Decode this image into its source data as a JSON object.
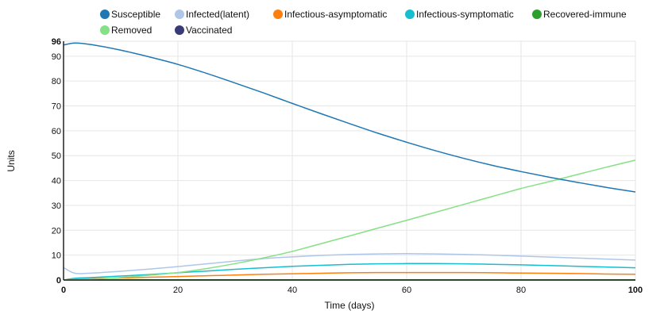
{
  "chart_data": {
    "type": "line",
    "title": "",
    "xlabel": "Time (days)",
    "ylabel": "Units",
    "xlim": [
      0,
      100
    ],
    "ylim": [
      0,
      96
    ],
    "x_ticks": [
      {
        "value": 0,
        "label": "0",
        "bold": true
      },
      {
        "value": 20,
        "label": "20",
        "bold": false
      },
      {
        "value": 40,
        "label": "40",
        "bold": false
      },
      {
        "value": 60,
        "label": "60",
        "bold": false
      },
      {
        "value": 80,
        "label": "80",
        "bold": false
      },
      {
        "value": 100,
        "label": "100",
        "bold": true
      }
    ],
    "y_ticks": [
      {
        "value": 0,
        "label": "0",
        "bold": true
      },
      {
        "value": 10,
        "label": "10",
        "bold": false
      },
      {
        "value": 20,
        "label": "20",
        "bold": false
      },
      {
        "value": 30,
        "label": "30",
        "bold": false
      },
      {
        "value": 40,
        "label": "40",
        "bold": false
      },
      {
        "value": 50,
        "label": "50",
        "bold": false
      },
      {
        "value": 60,
        "label": "60",
        "bold": false
      },
      {
        "value": 70,
        "label": "70",
        "bold": false
      },
      {
        "value": 80,
        "label": "80",
        "bold": false
      },
      {
        "value": 90,
        "label": "90",
        "bold": false
      },
      {
        "value": 96,
        "label": "96",
        "bold": true
      }
    ],
    "grid": true,
    "legend_position": "top",
    "x": [
      0,
      2,
      5,
      10,
      15,
      20,
      25,
      30,
      35,
      40,
      45,
      50,
      55,
      60,
      65,
      70,
      75,
      80,
      85,
      90,
      95,
      100
    ],
    "series": [
      {
        "name": "Susceptible",
        "color": "#1f77b4",
        "values": [
          94.5,
          95.3,
          94.6,
          92.4,
          89.7,
          86.7,
          83.1,
          79.2,
          75.2,
          71.0,
          66.9,
          62.9,
          59.0,
          55.4,
          52.0,
          48.9,
          46.1,
          43.6,
          41.3,
          39.2,
          37.2,
          35.4
        ]
      },
      {
        "name": "Infected(latent)",
        "color": "#aec7e8",
        "values": [
          5.0,
          2.7,
          2.8,
          3.5,
          4.4,
          5.4,
          6.5,
          7.6,
          8.6,
          9.3,
          9.9,
          10.3,
          10.5,
          10.6,
          10.5,
          10.3,
          10.0,
          9.6,
          9.2,
          8.8,
          8.4,
          8.0
        ]
      },
      {
        "name": "Infectious-asymptomatic",
        "color": "#ff7f0e",
        "values": [
          0.0,
          0.4,
          0.6,
          0.8,
          1.1,
          1.4,
          1.7,
          2.0,
          2.3,
          2.5,
          2.7,
          2.9,
          3.0,
          3.0,
          3.0,
          3.0,
          2.9,
          2.8,
          2.7,
          2.6,
          2.4,
          2.3
        ]
      },
      {
        "name": "Infectious-symptomatic",
        "color": "#17becf",
        "values": [
          0.0,
          0.7,
          1.0,
          1.6,
          2.2,
          2.9,
          3.6,
          4.3,
          4.9,
          5.5,
          5.9,
          6.3,
          6.5,
          6.6,
          6.6,
          6.5,
          6.3,
          6.1,
          5.8,
          5.5,
          5.2,
          4.9
        ]
      },
      {
        "name": "Recovered-immune",
        "color": "#2ca02c",
        "values": [
          0.1,
          0.1,
          0.1,
          0.1,
          0.1,
          0.1,
          0.1,
          0.1,
          0.1,
          0.1,
          0.1,
          0.1,
          0.1,
          0.1,
          0.1,
          0.1,
          0.1,
          0.1,
          0.1,
          0.1,
          0.1,
          0.1
        ]
      },
      {
        "name": "Removed",
        "color": "#86e086",
        "values": [
          0.0,
          0.2,
          0.4,
          1.0,
          1.9,
          3.0,
          4.6,
          6.6,
          8.9,
          11.5,
          14.6,
          17.7,
          20.9,
          24.0,
          27.2,
          30.4,
          33.6,
          36.8,
          39.6,
          42.5,
          45.4,
          48.2
        ]
      },
      {
        "name": "Vaccinated",
        "color": "#393b79",
        "values": [
          0.0,
          0.0,
          0.0,
          0.0,
          0.0,
          0.0,
          0.0,
          0.0,
          0.0,
          0.0,
          0.0,
          0.0,
          0.0,
          0.0,
          0.0,
          0.0,
          0.0,
          0.0,
          0.0,
          0.0,
          0.0,
          0.0
        ]
      }
    ]
  }
}
